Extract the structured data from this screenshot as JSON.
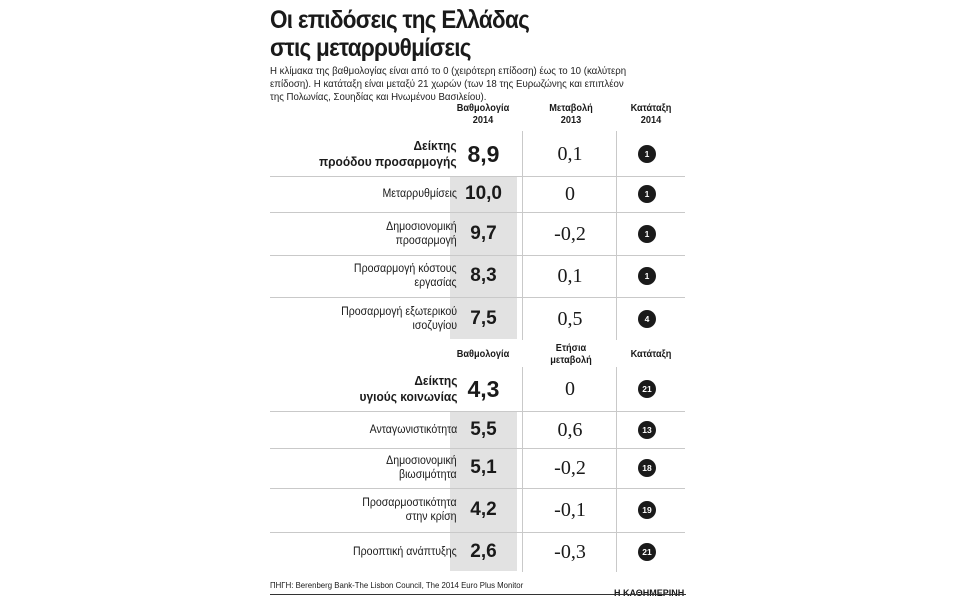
{
  "title_line1": "Οι επιδόσεις της Ελλάδας",
  "title_line2": "στις μεταρρυθμίσεις",
  "subtitle": [
    "Η κλίμακα της βαθμολογίας είναι από το 0 (χειρότερη επίδοση) έως το 10 (καλύτερη",
    "επίδοση). Η κατάταξη είναι μεταξύ 21 χωρών (των 18 της Ευρωζώνης και επιπλέον",
    "της Πολωνίας, Σουηδίας και Ηνωμένου Βασιλείου)."
  ],
  "table1": {
    "headers": [
      [
        "Βαθμολογία",
        "2014"
      ],
      [
        "Μεταβολή",
        "2013"
      ],
      [
        "Κατάταξη",
        "2014"
      ]
    ],
    "rows": [
      {
        "label": [
          "Δείκτης",
          "προόδου προσαρμογής"
        ],
        "score": "8,9",
        "change": "0,1",
        "rank": "1",
        "main": true
      },
      {
        "label": [
          "Μεταρρυθμίσεις"
        ],
        "score": "10,0",
        "change": "0",
        "rank": "1"
      },
      {
        "label": [
          "Δημοσιονομική",
          "προσαρμογή"
        ],
        "score": "9,7",
        "change": "-0,2",
        "rank": "1"
      },
      {
        "label": [
          "Προσαρμογή κόστους",
          "εργασίας"
        ],
        "score": "8,3",
        "change": "0,1",
        "rank": "1"
      },
      {
        "label": [
          "Προσαρμογή εξωτερικού",
          "ισοζυγίου"
        ],
        "score": "7,5",
        "change": "0,5",
        "rank": "4"
      }
    ]
  },
  "table2": {
    "headers": [
      [
        "Βαθμολογία"
      ],
      [
        "Ετήσια",
        "μεταβολή"
      ],
      [
        "Κατάταξη"
      ]
    ],
    "rows": [
      {
        "label": [
          "Δείκτης",
          "υγιούς κοινωνίας"
        ],
        "score": "4,3",
        "change": "0",
        "rank": "21",
        "main": true
      },
      {
        "label": [
          "Ανταγωνιστικότητα"
        ],
        "score": "5,5",
        "change": "0,6",
        "rank": "13"
      },
      {
        "label": [
          "Δημοσιονομική",
          "βιωσιμότητα"
        ],
        "score": "5,1",
        "change": "-0,2",
        "rank": "18"
      },
      {
        "label": [
          "Προσαρμοστικότητα",
          "στην κρίση"
        ],
        "score": "4,2",
        "change": "-0,1",
        "rank": "19"
      },
      {
        "label": [
          "Προοπτική ανάπτυξης"
        ],
        "score": "2,6",
        "change": "-0,3",
        "rank": "21"
      }
    ]
  },
  "source": "ΠΗΓΗ: Berenberg Bank-The Lisbon Council, The 2014 Euro Plus Monitor",
  "logo": "Η ΚΑΘΗΜΕΡΙΝΗ"
}
